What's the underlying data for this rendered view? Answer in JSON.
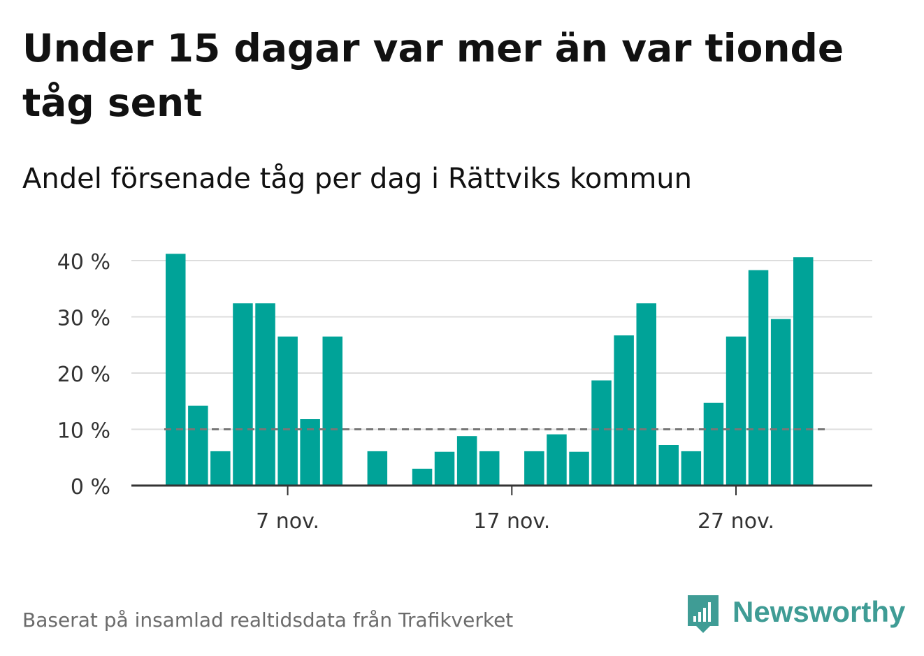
{
  "header": {
    "title": "Under 15 dagar var mer än var tionde tåg sent",
    "subtitle": "Andel försenade tåg per dag i Rättviks kommun"
  },
  "footer": {
    "source": "Baserat på insamlad realtidsdata från Trafikverket"
  },
  "brand": {
    "name": "Newsworthy",
    "icon": "bar-chart-speech-bubble-icon"
  },
  "colors": {
    "bar": "#00a398",
    "reference_line": "#777777",
    "grid": "#dddddd",
    "axis": "#333333",
    "brand": "#3f9c95"
  },
  "chart_data": {
    "type": "bar",
    "x": [
      "2 nov.",
      "3 nov.",
      "4 nov.",
      "5 nov.",
      "6 nov.",
      "7 nov.",
      "8 nov.",
      "9 nov.",
      "10 nov.",
      "11 nov.",
      "12 nov.",
      "13 nov.",
      "14 nov.",
      "15 nov.",
      "16 nov.",
      "17 nov.",
      "18 nov.",
      "19 nov.",
      "20 nov.",
      "21 nov.",
      "22 nov.",
      "23 nov.",
      "24 nov.",
      "25 nov.",
      "26 nov.",
      "27 nov.",
      "28 nov.",
      "29 nov.",
      "30 nov."
    ],
    "values": [
      41.2,
      14.2,
      6.1,
      32.4,
      32.4,
      26.5,
      11.8,
      26.5,
      0,
      6.1,
      0,
      3.0,
      6.0,
      8.8,
      6.1,
      0,
      6.1,
      9.1,
      6.0,
      18.7,
      26.7,
      32.4,
      7.2,
      6.1,
      14.7,
      26.5,
      38.3,
      29.6,
      40.6
    ],
    "x_ticks": [
      "7 nov.",
      "17 nov.",
      "27 nov."
    ],
    "y_ticks": [
      0,
      10,
      20,
      30,
      40
    ],
    "y_tick_labels": [
      "0 %",
      "10 %",
      "20 %",
      "30 %",
      "40 %"
    ],
    "ylim": [
      0,
      43
    ],
    "reference_line": 10,
    "reference_style": "dashed",
    "grid": true,
    "legend": false,
    "xlabel": "",
    "ylabel": ""
  }
}
